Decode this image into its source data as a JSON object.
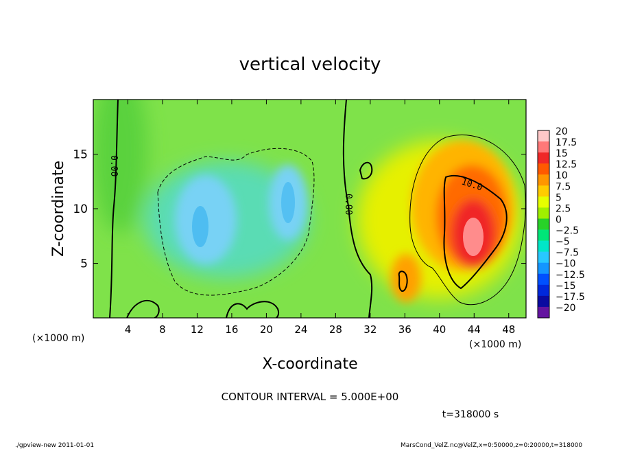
{
  "chart_data": {
    "type": "heatmap",
    "title": "vertical velocity",
    "xlabel": "X-coordinate",
    "ylabel": "Z-coordinate",
    "x_unit_left": "(×1000 m)",
    "x_unit_right": "(×1000 m)",
    "xlim": [
      0,
      50
    ],
    "ylim": [
      0,
      20
    ],
    "x_ticks": [
      4,
      8,
      12,
      16,
      20,
      24,
      28,
      32,
      36,
      40,
      44,
      48
    ],
    "y_ticks": [
      5,
      10,
      15
    ],
    "contour_interval_text": "CONTOUR INTERVAL = 5.000E+00",
    "time_text": "t=318000 s",
    "contour_labels": [
      "0.00",
      "0.00",
      "10.0"
    ],
    "colorbar": {
      "levels": [
        20,
        17.5,
        15,
        12.5,
        10,
        7.5,
        5,
        2.5,
        0,
        -2.5,
        -5,
        -7.5,
        -10,
        -12.5,
        -15,
        -17.5,
        -20
      ],
      "labels": [
        "20",
        "17.5",
        "15",
        "12.5",
        "10",
        "7.5",
        "5",
        "2.5",
        "0",
        "−2.5",
        "−5",
        "−7.5",
        "−10",
        "−12.5",
        "−15",
        "−17.5",
        "−20"
      ],
      "colors": [
        "#ffc8c8",
        "#ff7878",
        "#f02828",
        "#ff5a00",
        "#ff9600",
        "#ffcc00",
        "#e6ff00",
        "#a0f000",
        "#28d228",
        "#00e678",
        "#00e6c8",
        "#28c8ff",
        "#1496ff",
        "#0050ff",
        "#0028dc",
        "#0a0aa0",
        "#6414a0"
      ]
    },
    "features": [
      {
        "kind": "updraft-max",
        "x": 43.5,
        "z": 8.5,
        "value": 20
      },
      {
        "kind": "updraft",
        "x": 36,
        "z": 4.5,
        "value": 10
      },
      {
        "kind": "downdraft",
        "x": 12.5,
        "z": 9,
        "value": -8
      },
      {
        "kind": "downdraft",
        "x": 22,
        "z": 10.5,
        "value": -8
      }
    ]
  },
  "footer": {
    "left": "./gpview-new  2011-01-01",
    "right": "MarsCond_VelZ.nc@VelZ,x=0:50000,z=0:20000,t=318000"
  }
}
